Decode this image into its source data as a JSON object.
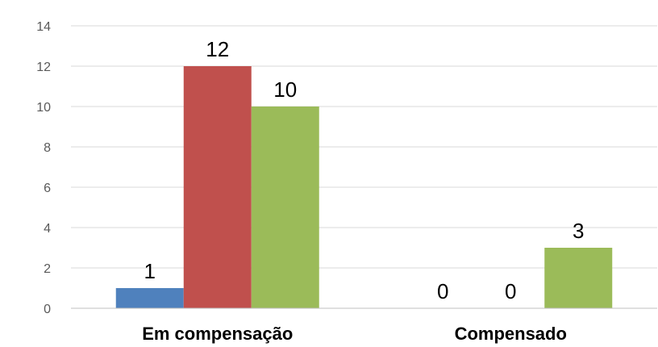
{
  "chart_data": {
    "type": "bar",
    "title": "",
    "xlabel": "",
    "ylabel": "",
    "categories": [
      "Em compensação",
      "Compensado"
    ],
    "series": [
      {
        "color": "#4f81bd",
        "values": [
          1,
          0
        ]
      },
      {
        "color": "#c0504d",
        "values": [
          12,
          0
        ]
      },
      {
        "color": "#9bbb59",
        "values": [
          10,
          3
        ]
      }
    ],
    "ylim": [
      0,
      14
    ],
    "yticks": [
      0,
      2,
      4,
      6,
      8,
      10,
      12,
      14
    ],
    "grid": true,
    "legend": "none",
    "data_labels": true
  }
}
